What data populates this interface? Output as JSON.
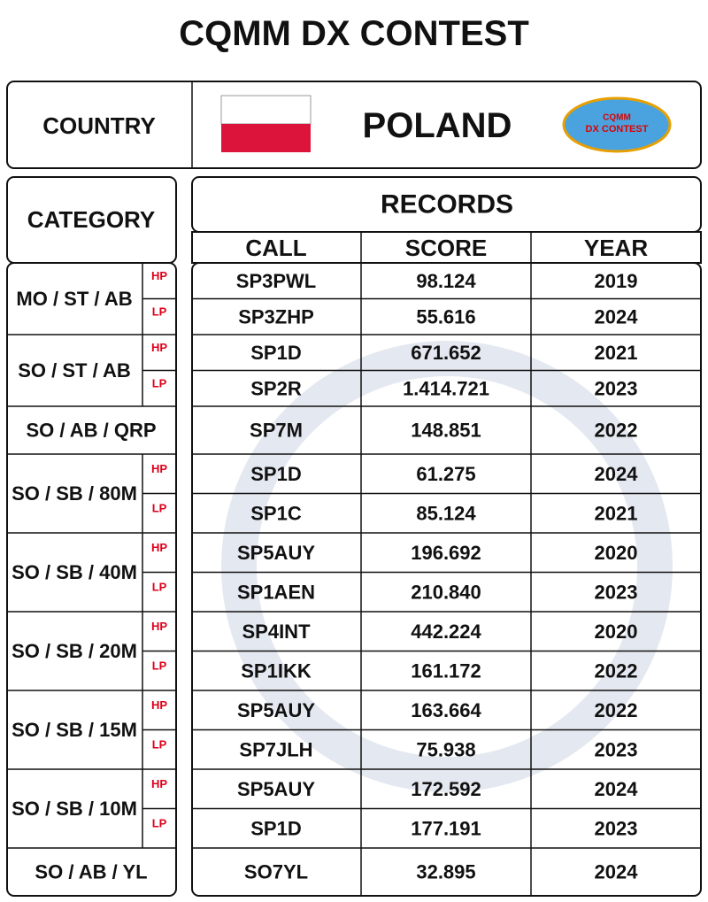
{
  "title": "CQMM DX CONTEST",
  "country": {
    "label": "COUNTRY",
    "name": "POLAND",
    "logo": [
      "CQMM",
      "DX CONTEST"
    ]
  },
  "category_label": "CATEGORY",
  "records": {
    "title": "RECORDS",
    "columns": [
      "CALL",
      "SCORE",
      "YEAR"
    ],
    "rows": [
      [
        "SP3PWL",
        "98.124",
        2019
      ],
      [
        "SP3ZHP",
        "55.616",
        2024
      ],
      [
        "SP1D",
        "671.652",
        2021
      ],
      [
        "SP2R",
        "1.414.721",
        2023
      ],
      [
        "SP7M",
        "148.851",
        2022
      ],
      [
        "SP1D",
        "61.275",
        2024
      ],
      [
        "SP1C",
        "85.124",
        2021
      ],
      [
        "SP5AUY",
        "196.692",
        2020
      ],
      [
        "SP1AEN",
        "210.840",
        2023
      ],
      [
        "SP4INT",
        "442.224",
        2020
      ],
      [
        "SP1IKK",
        "161.172",
        2022
      ],
      [
        "SP5AUY",
        "163.664",
        2022
      ],
      [
        "SP7JLH",
        "75.938",
        2023
      ],
      [
        "SP5AUY",
        "172.592",
        2024
      ],
      [
        "SP1D",
        "177.191",
        2023
      ],
      [
        "SO7YL",
        "32.895",
        2024
      ]
    ]
  },
  "categories": [
    {
      "name": "MO / ST / AB",
      "powers": [
        "HP",
        "LP"
      ]
    },
    {
      "name": "SO / ST / AB",
      "powers": [
        "HP",
        "LP"
      ]
    },
    {
      "name": "SO / AB / QRP"
    },
    {
      "name": "SO / SB / 80M",
      "powers": [
        "HP",
        "LP"
      ]
    },
    {
      "name": "SO / SB / 40M",
      "powers": [
        "HP",
        "LP"
      ]
    },
    {
      "name": "SO / SB / 20M",
      "powers": [
        "HP",
        "LP"
      ]
    },
    {
      "name": "SO / SB / 15M",
      "powers": [
        "HP",
        "LP"
      ]
    },
    {
      "name": "SO / SB / 10M",
      "powers": [
        "HP",
        "LP"
      ]
    },
    {
      "name": "SO / AB / YL"
    }
  ]
}
